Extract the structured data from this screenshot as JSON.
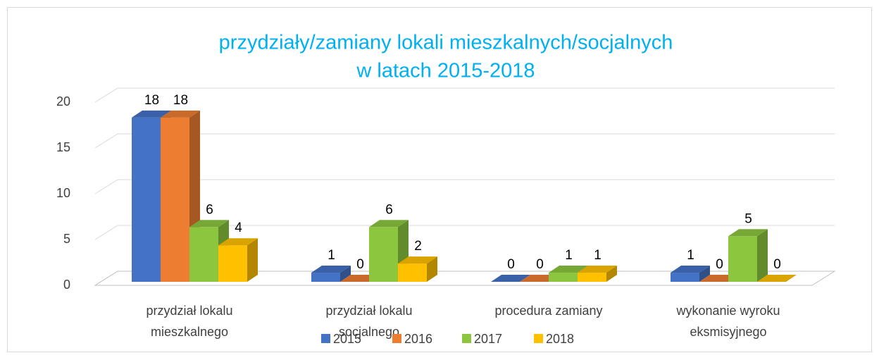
{
  "chart_data": {
    "type": "bar3d",
    "title": [
      "przydziały/zamiany lokali mieszkalnych/socjalnych",
      "w latach 2015-2018"
    ],
    "categories": [
      [
        "przydział lokalu",
        "mieszkalnego"
      ],
      [
        "przydział lokalu",
        "socjalnego"
      ],
      [
        "procedura zamiany"
      ],
      [
        "wykonanie wyroku",
        "eksmisyjnego"
      ]
    ],
    "series": [
      {
        "name": "2015",
        "color": "#4472c4",
        "values": [
          18,
          1,
          0,
          1
        ]
      },
      {
        "name": "2016",
        "color": "#ed7d31",
        "values": [
          18,
          0,
          0,
          0
        ]
      },
      {
        "name": "2017",
        "color": "#8cc63f",
        "values": [
          6,
          6,
          1,
          5
        ]
      },
      {
        "name": "2018",
        "color": "#ffc000",
        "values": [
          4,
          2,
          1,
          0
        ]
      }
    ],
    "ylim": [
      0,
      20
    ],
    "yticks": [
      0,
      5,
      10,
      15,
      20
    ],
    "grid": true,
    "legend": "bottom"
  }
}
